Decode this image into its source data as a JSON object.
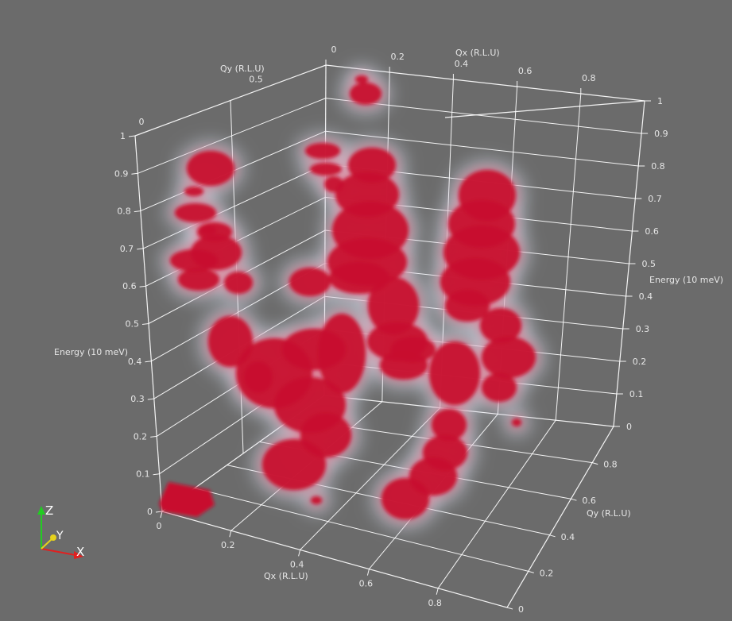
{
  "chart_data": {
    "type": "3d-volume",
    "axes": {
      "qx": {
        "label": "Qx (R.L.U)",
        "front_ticks": [
          "0",
          "0.2",
          "0.4",
          "0.6",
          "0.8"
        ],
        "back_ticks": [
          "0",
          "0.2",
          "0.4",
          "0.6",
          "0.8"
        ]
      },
      "qy": {
        "label": "Qy (R.L.U)",
        "top_ticks": [
          "0",
          "0.5"
        ],
        "right_ticks": [
          "0",
          "0.2",
          "0.4",
          "0.6",
          "0.8"
        ]
      },
      "energy": {
        "label": "Energy (10 meV)",
        "left_ticks": [
          "0",
          "0.1",
          "0.2",
          "0.3",
          "0.4",
          "0.5",
          "0.6",
          "0.7",
          "0.8",
          "0.9",
          "1"
        ],
        "right_ticks": [
          "0",
          "0.1",
          "0.2",
          "0.3",
          "0.4",
          "0.5",
          "0.6",
          "0.7",
          "0.8",
          "0.9",
          "1"
        ]
      }
    },
    "volume_color": "#c8102e",
    "halo_color": "#dfe6f5",
    "grid": true
  },
  "orientation_axes": {
    "z_label": "Z",
    "y_label": "Y",
    "x_label": "X",
    "z_color": "#22cc22",
    "y_color": "#e6d21c",
    "x_color": "#e02020"
  }
}
